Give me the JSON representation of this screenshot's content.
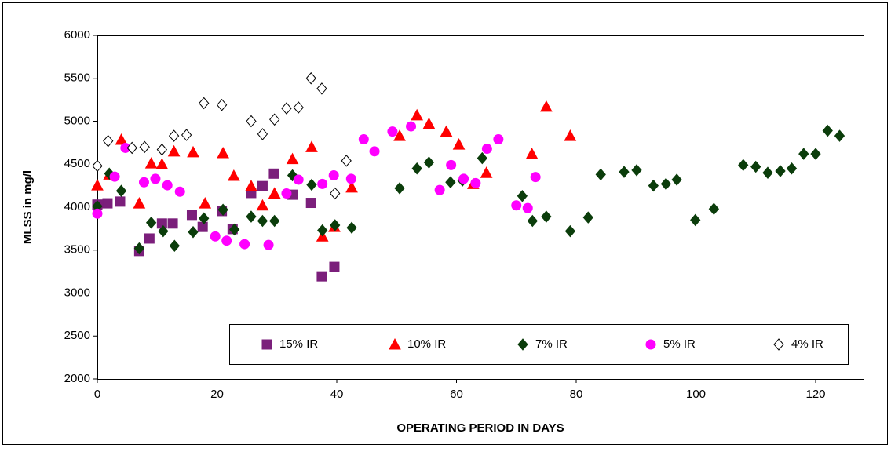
{
  "chart_data": {
    "type": "scatter",
    "x_label": "OPERATING PERIOD IN DAYS",
    "y_label": "MLSS in mg/l",
    "xlim": [
      0,
      128
    ],
    "xticks": [
      0,
      20,
      40,
      60,
      80,
      100,
      120
    ],
    "ylim": [
      2000,
      6000
    ],
    "yticks": [
      2000,
      2500,
      3000,
      3500,
      4000,
      4500,
      5000,
      5500,
      6000
    ],
    "grid": false,
    "legend": "bottom",
    "series": [
      {
        "name": "15% IR",
        "color": "#7b1f7b",
        "marker": "square",
        "x": [
          0,
          1.7,
          3.8,
          7,
          8.7,
          10.8,
          12.6,
          15.8,
          17.6,
          20.8,
          22.6,
          25.7,
          27.6,
          29.5,
          32.6,
          35.7,
          37.5,
          39.6
        ],
        "values": [
          4030,
          4045,
          4065,
          3490,
          3635,
          3810,
          3810,
          3910,
          3770,
          3955,
          3745,
          4165,
          4245,
          4390,
          4145,
          4050,
          3195,
          3305
        ]
      },
      {
        "name": "10% IR",
        "color": "#ff0000",
        "marker": "triangle",
        "x": [
          0,
          2,
          4,
          7,
          9,
          10.8,
          12.8,
          16,
          18,
          21,
          22.8,
          25.7,
          27.6,
          29.6,
          32.6,
          35.8,
          37.6,
          39.6,
          42.5,
          50.5,
          53.4,
          55.4,
          58.3,
          60.4,
          62.8,
          65,
          72.6,
          75,
          79
        ],
        "values": [
          4255,
          4380,
          4785,
          4045,
          4510,
          4500,
          4650,
          4640,
          4045,
          4630,
          4365,
          4245,
          4020,
          4160,
          4560,
          4700,
          3660,
          3770,
          4230,
          4830,
          5070,
          4970,
          4880,
          4730,
          4270,
          4400,
          4620,
          5170,
          4830
        ]
      },
      {
        "name": "7% IR",
        "color": "#0b3d0b",
        "marker": "diamond",
        "x": [
          0,
          2,
          4,
          7,
          9,
          11,
          12.9,
          16,
          17.8,
          21,
          22.9,
          25.7,
          27.6,
          29.6,
          32.6,
          35.8,
          37.6,
          39.7,
          42.5,
          50.5,
          53.4,
          55.4,
          59,
          61,
          64.3,
          71,
          72.7,
          75,
          79,
          82,
          84.1,
          88,
          90.1,
          92.9,
          95,
          96.8,
          99.9,
          103,
          107.9,
          110,
          112,
          114.1,
          116,
          118,
          120,
          122,
          124
        ],
        "values": [
          4010,
          4390,
          4190,
          3520,
          3820,
          3720,
          3550,
          3710,
          3870,
          3970,
          3740,
          3890,
          3840,
          3840,
          4370,
          4260,
          3730,
          3790,
          3760,
          4220,
          4450,
          4520,
          4290,
          4310,
          4570,
          4130,
          3840,
          3890,
          3720,
          3880,
          4380,
          4410,
          4430,
          4250,
          4270,
          4320,
          3850,
          3980,
          4490,
          4470,
          4400,
          4420,
          4450,
          4620,
          4620,
          4890,
          4830
        ]
      },
      {
        "name": "5% IR",
        "color": "#ff00ff",
        "marker": "circle",
        "x": [
          0,
          2.9,
          4.7,
          7.8,
          9.7,
          11.7,
          13.8,
          19.7,
          21.6,
          24.6,
          28.6,
          31.6,
          33.6,
          37.6,
          39.5,
          42.4,
          44.5,
          46.3,
          49.3,
          52.4,
          57.2,
          59.1,
          61.2,
          63.2,
          65.1,
          67,
          70,
          71.9,
          73.2
        ],
        "values": [
          3925,
          4355,
          4690,
          4290,
          4330,
          4255,
          4180,
          3660,
          3610,
          3570,
          3560,
          4160,
          4320,
          4270,
          4370,
          4330,
          4790,
          4650,
          4880,
          4940,
          4200,
          4490,
          4330,
          4280,
          4680,
          4790,
          4020,
          3990,
          4350
        ]
      },
      {
        "name": "4% IR",
        "color": "#ffffff",
        "marker": "diamond",
        "x": [
          0,
          1.8,
          5.8,
          7.9,
          10.8,
          12.8,
          14.9,
          17.8,
          20.8,
          25.7,
          27.6,
          29.6,
          31.6,
          33.6,
          35.7,
          37.5,
          39.7,
          41.6
        ],
        "values": [
          4480,
          4770,
          4690,
          4700,
          4670,
          4830,
          4840,
          5210,
          5190,
          5000,
          4850,
          5020,
          5150,
          5160,
          5500,
          5380,
          4160,
          4540
        ]
      }
    ]
  }
}
